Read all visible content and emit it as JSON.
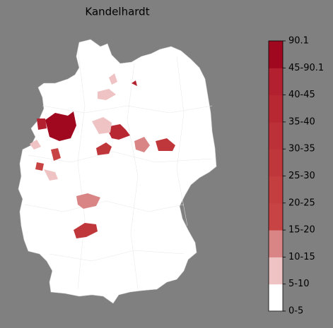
{
  "title": "Kandelhardt",
  "legend": {
    "labels": [
      "0-5",
      "5-10",
      "10-15",
      "15-20",
      "20-25",
      "25-30",
      "30-35",
      "35-40",
      "40-45",
      "45-90.1",
      "90.1"
    ],
    "colors": [
      "#ffffff",
      "#efc3c3",
      "#da8585",
      "#c84444",
      "#c43e3f",
      "#c0373b",
      "#bc3037",
      "#b72833",
      "#b3202f",
      "#a0081f"
    ]
  }
}
